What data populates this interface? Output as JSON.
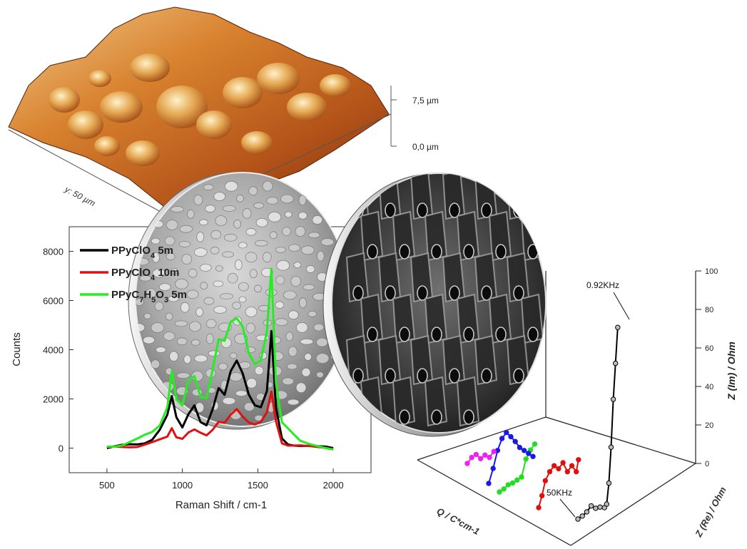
{
  "afm": {
    "z_max_label": "7,5 µm",
    "z_min_label": "0,0 µm",
    "y_axis_label": "y: 50 µm"
  },
  "raman": {
    "chart_data": {
      "type": "line",
      "xlabel": "Raman Shift / cm-1",
      "ylabel": "Counts",
      "xlim": [
        250,
        2250
      ],
      "ylim": [
        -1000,
        9000
      ],
      "xticks": [
        500,
        1000,
        1500,
        2000
      ],
      "yticks": [
        0,
        2000,
        4000,
        6000,
        8000
      ],
      "legend_position": "top-left",
      "series": [
        {
          "name": "PPyClO4 5m",
          "legend": {
            "pre": "PPyClO",
            "sub": "4",
            "post": " 5m"
          },
          "color": "#000000",
          "x": [
            500,
            550,
            600,
            650,
            700,
            750,
            800,
            850,
            900,
            930,
            960,
            1000,
            1040,
            1080,
            1120,
            1160,
            1200,
            1240,
            1280,
            1320,
            1360,
            1400,
            1440,
            1480,
            1520,
            1560,
            1590,
            1620,
            1660,
            1700,
            1740,
            1780,
            1850,
            1950,
            2000
          ],
          "y": [
            0,
            20,
            80,
            150,
            200,
            250,
            350,
            700,
            1300,
            2100,
            1300,
            900,
            1400,
            1700,
            1000,
            900,
            1600,
            2500,
            2200,
            3100,
            3500,
            3000,
            2200,
            1800,
            1700,
            2300,
            4700,
            1600,
            400,
            200,
            150,
            80,
            40,
            10,
            0
          ]
        },
        {
          "name": "PPyClO4 10m",
          "legend": {
            "pre": "PPyClO",
            "sub": "4",
            "post": " 10m"
          },
          "color": "#e01010",
          "x": [
            500,
            550,
            600,
            650,
            700,
            750,
            800,
            850,
            900,
            930,
            960,
            1000,
            1040,
            1080,
            1120,
            1160,
            1200,
            1240,
            1280,
            1320,
            1360,
            1400,
            1440,
            1480,
            1520,
            1560,
            1590,
            1620,
            1660,
            1700,
            1740,
            1780,
            1850,
            1950,
            2000
          ],
          "y": [
            0,
            10,
            40,
            80,
            100,
            150,
            200,
            300,
            450,
            850,
            500,
            400,
            600,
            700,
            600,
            550,
            800,
            1100,
            1000,
            1300,
            1550,
            1300,
            1100,
            1000,
            1050,
            1400,
            2250,
            1100,
            250,
            150,
            100,
            60,
            30,
            10,
            0
          ]
        },
        {
          "name": "PPyC7H5O3 5m",
          "legend": {
            "pre": "PPyC",
            "sub": "7",
            "mid": "H",
            "sub2": "5",
            "mid2": "O",
            "sub3": "3",
            "post": " 5m"
          },
          "color": "#22ee22",
          "x": [
            500,
            550,
            600,
            650,
            700,
            750,
            800,
            850,
            900,
            930,
            960,
            1000,
            1040,
            1080,
            1120,
            1160,
            1200,
            1240,
            1280,
            1320,
            1360,
            1400,
            1440,
            1480,
            1520,
            1560,
            1590,
            1620,
            1660,
            1700,
            1740,
            1780,
            1850,
            1950,
            2000
          ],
          "y": [
            0,
            50,
            150,
            300,
            400,
            500,
            600,
            900,
            1700,
            3200,
            2000,
            1700,
            2700,
            2900,
            2100,
            2100,
            3200,
            4400,
            4300,
            5100,
            5300,
            5000,
            3900,
            3400,
            3500,
            4700,
            7300,
            2700,
            1100,
            800,
            500,
            250,
            150,
            50,
            0
          ]
        }
      ]
    }
  },
  "impedance": {
    "chart_data": {
      "type": "line",
      "kind": "3d-nyquist",
      "z_axis_label": "Z (Im) / Ohm",
      "x_axis_label": "Z (Re) / Ohm",
      "depth_axis_label": "Q / C*cm-1",
      "z_ticks": [
        "100",
        "80",
        "60",
        "40",
        "20",
        "0"
      ],
      "annotations": [
        "0.92KHz",
        "50KHz"
      ],
      "series": [
        {
          "color": "#000000",
          "points": [
            [
              0,
              0
            ],
            [
              4,
              5
            ],
            [
              8,
              12
            ],
            [
              12,
              22
            ],
            [
              16,
              18
            ],
            [
              20,
              20
            ],
            [
              24,
              19
            ],
            [
              26,
              25
            ],
            [
              28,
              60
            ],
            [
              30,
              120
            ],
            [
              32,
              200
            ],
            [
              34,
              260
            ],
            [
              36,
              320
            ]
          ]
        },
        {
          "color": "#e01010",
          "points": [
            [
              0,
              0
            ],
            [
              3,
              20
            ],
            [
              6,
              45
            ],
            [
              10,
              60
            ],
            [
              14,
              70
            ],
            [
              18,
              65
            ],
            [
              22,
              75
            ],
            [
              26,
              60
            ],
            [
              30,
              70
            ],
            [
              34,
              60
            ],
            [
              36,
              80
            ]
          ]
        },
        {
          "color": "#22dd22",
          "points": [
            [
              0,
              0
            ],
            [
              4,
              5
            ],
            [
              8,
              12
            ],
            [
              12,
              15
            ],
            [
              16,
              20
            ],
            [
              20,
              25
            ],
            [
              24,
              55
            ],
            [
              28,
              70
            ],
            [
              32,
              80
            ]
          ]
        },
        {
          "color": "#1a1ae0",
          "points": [
            [
              0,
              0
            ],
            [
              4,
              25
            ],
            [
              8,
              55
            ],
            [
              12,
              75
            ],
            [
              16,
              85
            ],
            [
              20,
              78
            ],
            [
              24,
              70
            ],
            [
              28,
              60
            ],
            [
              32,
              55
            ],
            [
              36,
              50
            ],
            [
              40,
              45
            ]
          ]
        },
        {
          "color": "#ee22ee",
          "points": [
            [
              0,
              0
            ],
            [
              4,
              10
            ],
            [
              8,
              15
            ],
            [
              12,
              8
            ],
            [
              16,
              14
            ],
            [
              20,
              10
            ],
            [
              24,
              20
            ]
          ]
        }
      ]
    }
  }
}
